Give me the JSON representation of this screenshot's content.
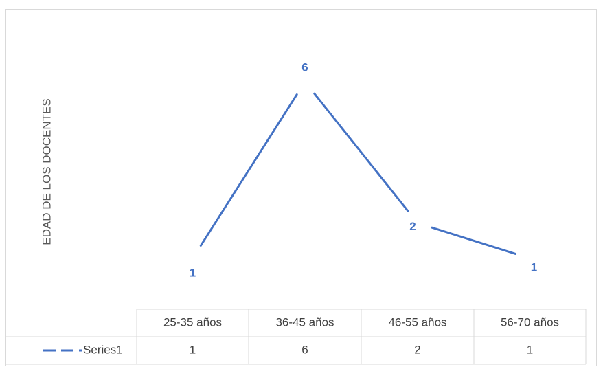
{
  "chart_data": {
    "type": "line",
    "title": "",
    "ylabel": "EDAD DE LOS DOCENTES",
    "xlabel": "",
    "categories": [
      "25-35 años",
      "36-45 años",
      "46-55 años",
      "56-70 años"
    ],
    "series": [
      {
        "name": "Series1",
        "values": [
          1,
          6,
          2,
          1
        ],
        "color": "#4472c4"
      }
    ],
    "data_labels": true,
    "data_table": true,
    "legend_in_table": true,
    "grid": false,
    "ylim": [
      0,
      7
    ]
  }
}
